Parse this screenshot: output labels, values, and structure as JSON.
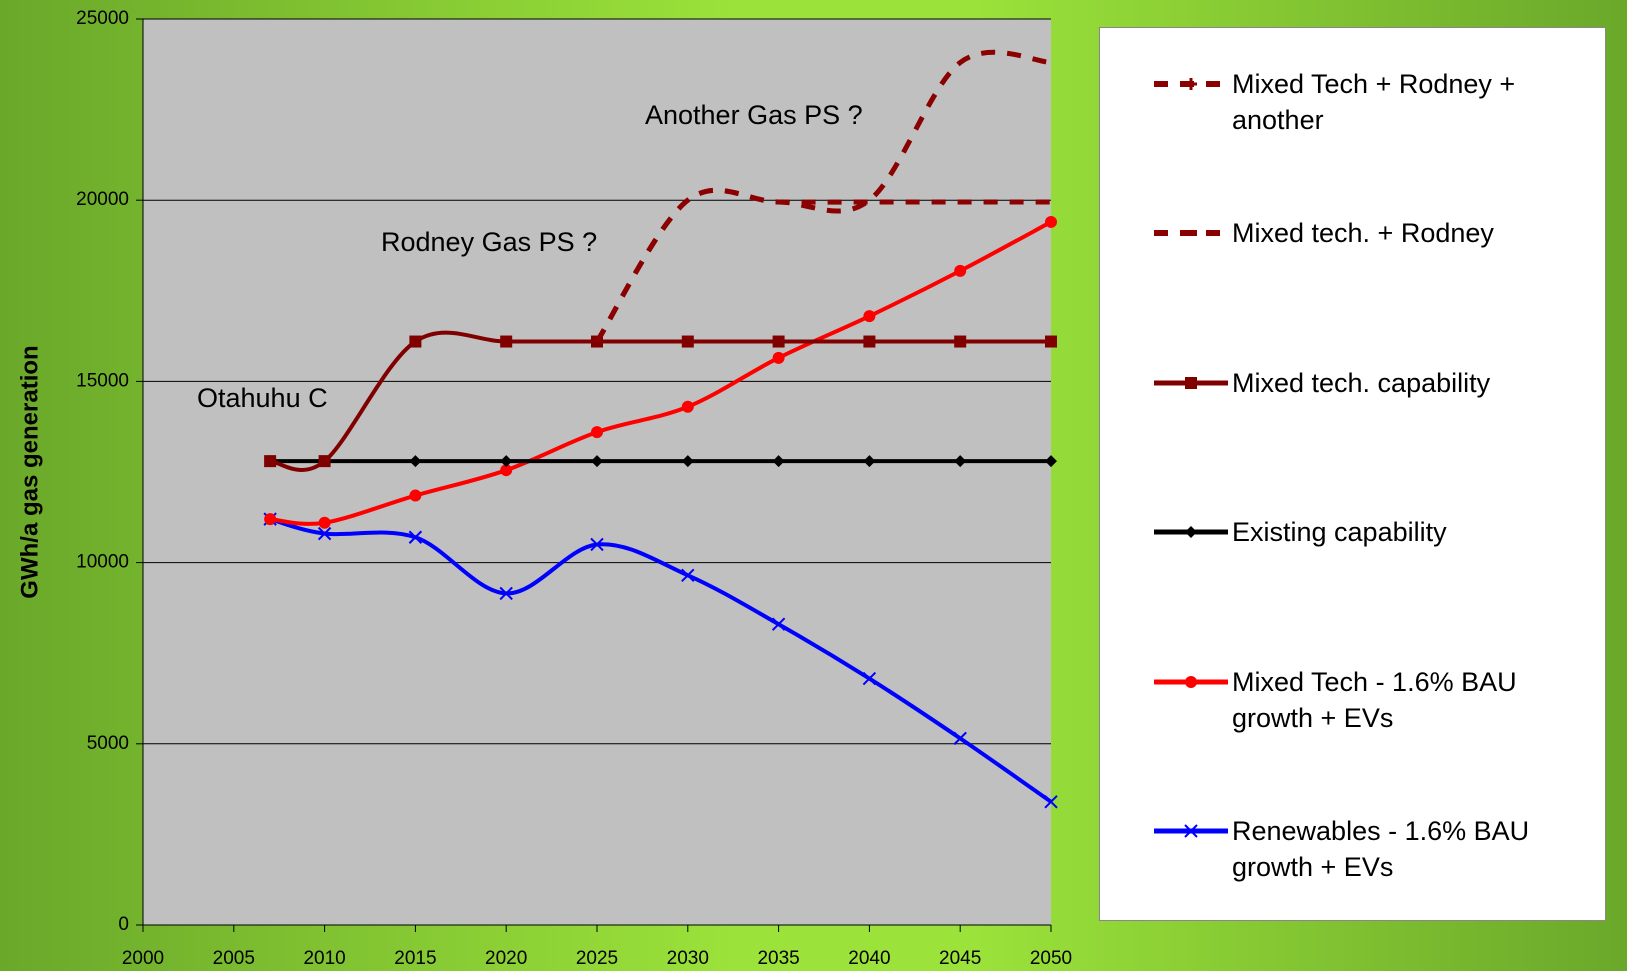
{
  "chart_data": {
    "type": "line",
    "y_axis_label": "GWh/a gas generation",
    "annotations": [
      "Another Gas PS ?",
      "Rodney Gas PS ?",
      "Otahuhu C"
    ],
    "x": [
      2007,
      2010,
      2015,
      2020,
      2025,
      2030,
      2035,
      2040,
      2045,
      2050
    ],
    "series": [
      {
        "name": "Mixed Tech + Rodney + another",
        "color": "#8b0000",
        "dashed": true,
        "marker": "plus",
        "values": [
          null,
          null,
          null,
          null,
          16100,
          20000,
          19950,
          20000,
          23800,
          23800
        ]
      },
      {
        "name": "Mixed tech. + Rodney",
        "color": "#8b0000",
        "dashed": true,
        "marker": "dash",
        "values": [
          null,
          null,
          null,
          null,
          16100,
          20000,
          19950,
          19950,
          19950,
          19950
        ]
      },
      {
        "name": "Mixed tech. capability",
        "color": "#800000",
        "dashed": false,
        "marker": "square",
        "values": [
          12800,
          12800,
          16100,
          16100,
          16100,
          16100,
          16100,
          16100,
          16100,
          16100
        ]
      },
      {
        "name": "Existing capability",
        "color": "#000000",
        "dashed": false,
        "marker": "diamond",
        "values": [
          12800,
          12800,
          12800,
          12800,
          12800,
          12800,
          12800,
          12800,
          12800,
          12800
        ]
      },
      {
        "name": "Mixed Tech  - 1.6% BAU growth + EVs",
        "color": "#ff0000",
        "dashed": false,
        "marker": "circle",
        "values": [
          11200,
          11100,
          11850,
          12550,
          13600,
          14300,
          15650,
          16800,
          18050,
          19400
        ]
      },
      {
        "name": "Renewables - 1.6% BAU growth + EVs",
        "color": "#0000ff",
        "dashed": false,
        "marker": "x",
        "values": [
          11200,
          10800,
          10700,
          9150,
          10500,
          9650,
          8300,
          6800,
          5150,
          3400
        ]
      }
    ],
    "xlim": [
      2000,
      2050
    ],
    "xticks": [
      2000,
      2005,
      2010,
      2015,
      2020,
      2025,
      2030,
      2035,
      2040,
      2045,
      2050
    ],
    "ylim": [
      0,
      25000
    ],
    "yticks": [
      0,
      5000,
      10000,
      15000,
      20000,
      25000
    ],
    "grid": true,
    "legend": "right",
    "smooth": true
  }
}
